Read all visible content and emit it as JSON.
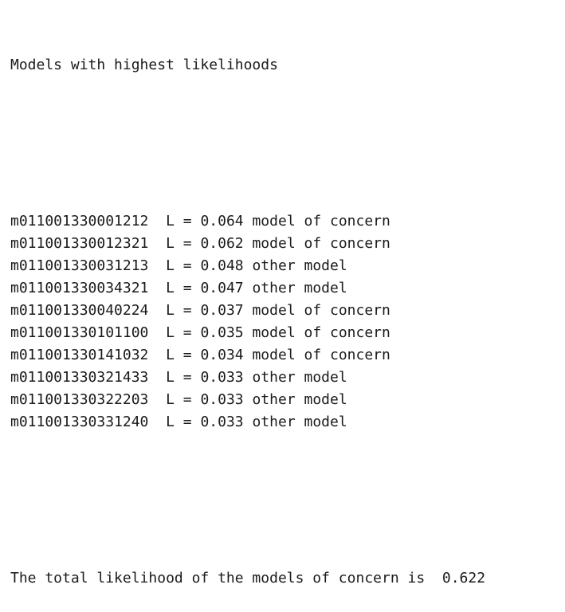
{
  "output": {
    "heading": "Models with highest likelihoods",
    "rows": [
      {
        "id": "m011001330001212",
        "likelihood": "0.064",
        "label": "model of concern"
      },
      {
        "id": "m011001330012321",
        "likelihood": "0.062",
        "label": "model of concern"
      },
      {
        "id": "m011001330031213",
        "likelihood": "0.048",
        "label": "other model"
      },
      {
        "id": "m011001330034321",
        "likelihood": "0.047",
        "label": "other model"
      },
      {
        "id": "m011001330040224",
        "likelihood": "0.037",
        "label": "model of concern"
      },
      {
        "id": "m011001330101100",
        "likelihood": "0.035",
        "label": "model of concern"
      },
      {
        "id": "m011001330141032",
        "likelihood": "0.034",
        "label": "model of concern"
      },
      {
        "id": "m011001330321433",
        "likelihood": "0.033",
        "label": "other model"
      },
      {
        "id": "m011001330322203",
        "likelihood": "0.033",
        "label": "other model"
      },
      {
        "id": "m011001330331240",
        "likelihood": "0.033",
        "label": "other model"
      }
    ],
    "l_prefix": "L = ",
    "total_text": "The total likelihood of the models of concern is",
    "total_value": "0.622"
  }
}
